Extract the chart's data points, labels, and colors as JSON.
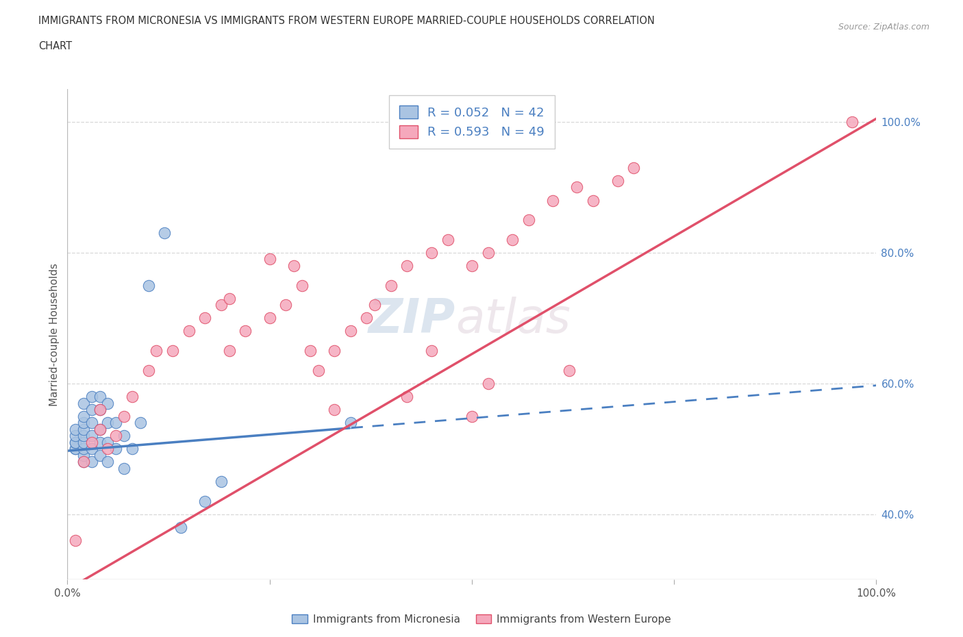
{
  "title_line1": "IMMIGRANTS FROM MICRONESIA VS IMMIGRANTS FROM WESTERN EUROPE MARRIED-COUPLE HOUSEHOLDS CORRELATION",
  "title_line2": "CHART",
  "source": "Source: ZipAtlas.com",
  "ylabel": "Married-couple Households",
  "xmin": 0.0,
  "xmax": 1.0,
  "ymin": 0.3,
  "ymax": 1.05,
  "r_micronesia": 0.052,
  "n_micronesia": 42,
  "r_western_europe": 0.593,
  "n_western_europe": 49,
  "color_micronesia": "#aac4e2",
  "color_western_europe": "#f5a8bc",
  "line_color_micronesia": "#4a7fc1",
  "line_color_western_europe": "#e0506a",
  "watermark_zip": "ZIP",
  "watermark_atlas": "atlas",
  "micronesia_x": [
    0.01,
    0.01,
    0.01,
    0.01,
    0.01,
    0.01,
    0.02,
    0.02,
    0.02,
    0.02,
    0.02,
    0.02,
    0.02,
    0.02,
    0.02,
    0.03,
    0.03,
    0.03,
    0.03,
    0.03,
    0.03,
    0.04,
    0.04,
    0.04,
    0.04,
    0.04,
    0.05,
    0.05,
    0.05,
    0.05,
    0.06,
    0.06,
    0.07,
    0.07,
    0.08,
    0.09,
    0.1,
    0.12,
    0.14,
    0.17,
    0.19,
    0.35
  ],
  "micronesia_y": [
    0.5,
    0.5,
    0.51,
    0.51,
    0.52,
    0.53,
    0.48,
    0.49,
    0.5,
    0.51,
    0.52,
    0.53,
    0.54,
    0.55,
    0.57,
    0.48,
    0.5,
    0.52,
    0.54,
    0.56,
    0.58,
    0.49,
    0.51,
    0.53,
    0.56,
    0.58,
    0.48,
    0.51,
    0.54,
    0.57,
    0.5,
    0.54,
    0.47,
    0.52,
    0.5,
    0.54,
    0.75,
    0.83,
    0.38,
    0.42,
    0.45,
    0.54
  ],
  "western_europe_x": [
    0.01,
    0.02,
    0.03,
    0.04,
    0.04,
    0.05,
    0.06,
    0.07,
    0.08,
    0.1,
    0.11,
    0.13,
    0.15,
    0.17,
    0.19,
    0.2,
    0.22,
    0.25,
    0.27,
    0.29,
    0.3,
    0.31,
    0.33,
    0.35,
    0.37,
    0.38,
    0.4,
    0.42,
    0.45,
    0.47,
    0.5,
    0.52,
    0.55,
    0.57,
    0.6,
    0.63,
    0.65,
    0.68,
    0.7,
    0.28,
    0.5,
    0.52,
    0.62,
    0.25,
    0.45,
    0.2,
    0.33,
    0.42,
    0.97
  ],
  "western_europe_y": [
    0.36,
    0.48,
    0.51,
    0.53,
    0.56,
    0.5,
    0.52,
    0.55,
    0.58,
    0.62,
    0.65,
    0.65,
    0.68,
    0.7,
    0.72,
    0.65,
    0.68,
    0.7,
    0.72,
    0.75,
    0.65,
    0.62,
    0.65,
    0.68,
    0.7,
    0.72,
    0.75,
    0.78,
    0.8,
    0.82,
    0.78,
    0.8,
    0.82,
    0.85,
    0.88,
    0.9,
    0.88,
    0.91,
    0.93,
    0.78,
    0.55,
    0.6,
    0.62,
    0.79,
    0.65,
    0.73,
    0.56,
    0.58,
    1.0
  ],
  "ytick_positions": [
    0.4,
    0.6,
    0.8,
    1.0
  ],
  "ytick_labels": [
    "40.0%",
    "60.0%",
    "80.0%",
    "100.0%"
  ],
  "xtick_positions": [
    0.0,
    0.25,
    0.5,
    0.75,
    1.0
  ],
  "xtick_labels": [
    "0.0%",
    "",
    "",
    "",
    "100.0%"
  ],
  "background_color": "#ffffff",
  "grid_color": "#d8d8d8"
}
